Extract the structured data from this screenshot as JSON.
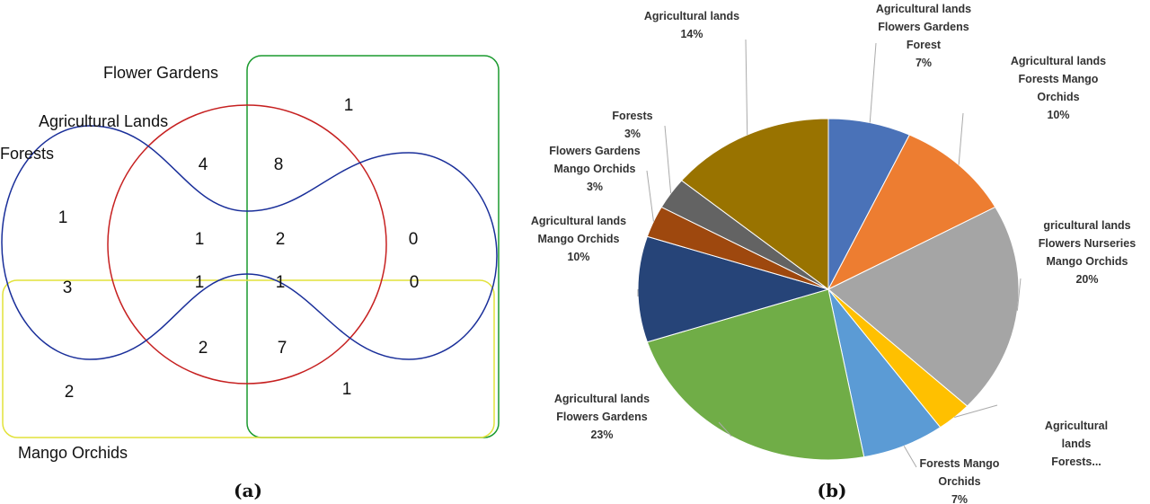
{
  "venn": {
    "caption": "(a)",
    "sets": [
      {
        "name": "Flower Gardens",
        "color": "#1a9a2e"
      },
      {
        "name": "Agricultural Lands",
        "color": "#c62020"
      },
      {
        "name": "Forests",
        "color": "#1a2f9a"
      },
      {
        "name": "Mango Orchids",
        "color": "#e2e23a"
      }
    ],
    "regions": [
      {
        "sets": "Flower Gardens only",
        "value": "1"
      },
      {
        "sets": "Agricultural Lands only",
        "value": "4"
      },
      {
        "sets": "Agricultural Lands + Flower Gardens",
        "value": "8"
      },
      {
        "sets": "Forests only",
        "value": "1"
      },
      {
        "sets": "Forests + Agricultural Lands",
        "value": "1"
      },
      {
        "sets": "Forests + Agricultural Lands + Flower Gardens",
        "value": "2"
      },
      {
        "sets": "Forests + Flower Gardens",
        "value": "0"
      },
      {
        "sets": "Forests + Mango Orchids",
        "value": "3"
      },
      {
        "sets": "Forests + Agricultural Lands + Mango Orchids",
        "value": "1"
      },
      {
        "sets": "All four",
        "value": "1"
      },
      {
        "sets": "Forests + Flower Gardens + Mango Orchids",
        "value": "0"
      },
      {
        "sets": "Agricultural Lands + Mango Orchids",
        "value": "2"
      },
      {
        "sets": "Agricultural Lands + Flower Gardens + Mango Orchids",
        "value": "7"
      },
      {
        "sets": "Mango Orchids only",
        "value": "2"
      },
      {
        "sets": "Flower Gardens + Mango Orchids",
        "value": "1"
      }
    ]
  },
  "chart_data": {
    "type": "pie",
    "caption": "(b)",
    "slices": [
      {
        "label": [
          "Agricultural lands",
          "Flowers Gardens",
          "Forest"
        ],
        "pct_label": "7%",
        "value": 7,
        "color": "#4a72b8"
      },
      {
        "label": [
          "Agricultural lands",
          "Forests Mango",
          "Orchids"
        ],
        "pct_label": "10%",
        "value": 10,
        "color": "#ed7d31"
      },
      {
        "label": [
          "gricultural lands",
          "Flowers Nurseries",
          "Mango Orchids"
        ],
        "pct_label": "20%",
        "value": 20,
        "color": "#a5a5a5"
      },
      {
        "label": [
          "Agricultural",
          "lands",
          "Forests..."
        ],
        "pct_label": "",
        "value": 3,
        "color": "#ffc000"
      },
      {
        "label": [
          "Forests Mango",
          "Orchids"
        ],
        "pct_label": "7%",
        "value": 7,
        "color": "#5b9bd5"
      },
      {
        "label": [
          "Agricultural lands",
          "Flowers Gardens"
        ],
        "pct_label": "23%",
        "value": 23,
        "color": "#70ad47"
      },
      {
        "label": [
          "Agricultural lands",
          "Mango Orchids"
        ],
        "pct_label": "10%",
        "value": 10,
        "color": "#264478"
      },
      {
        "label": [
          "Flowers Gardens",
          "Mango Orchids"
        ],
        "pct_label": "3%",
        "value": 3,
        "color": "#9e480e"
      },
      {
        "label": [
          "Forests"
        ],
        "pct_label": "3%",
        "value": 3,
        "color": "#636363"
      },
      {
        "label": [
          "Agricultural lands"
        ],
        "pct_label": "14%",
        "value": 14,
        "color": "#997300"
      }
    ]
  }
}
